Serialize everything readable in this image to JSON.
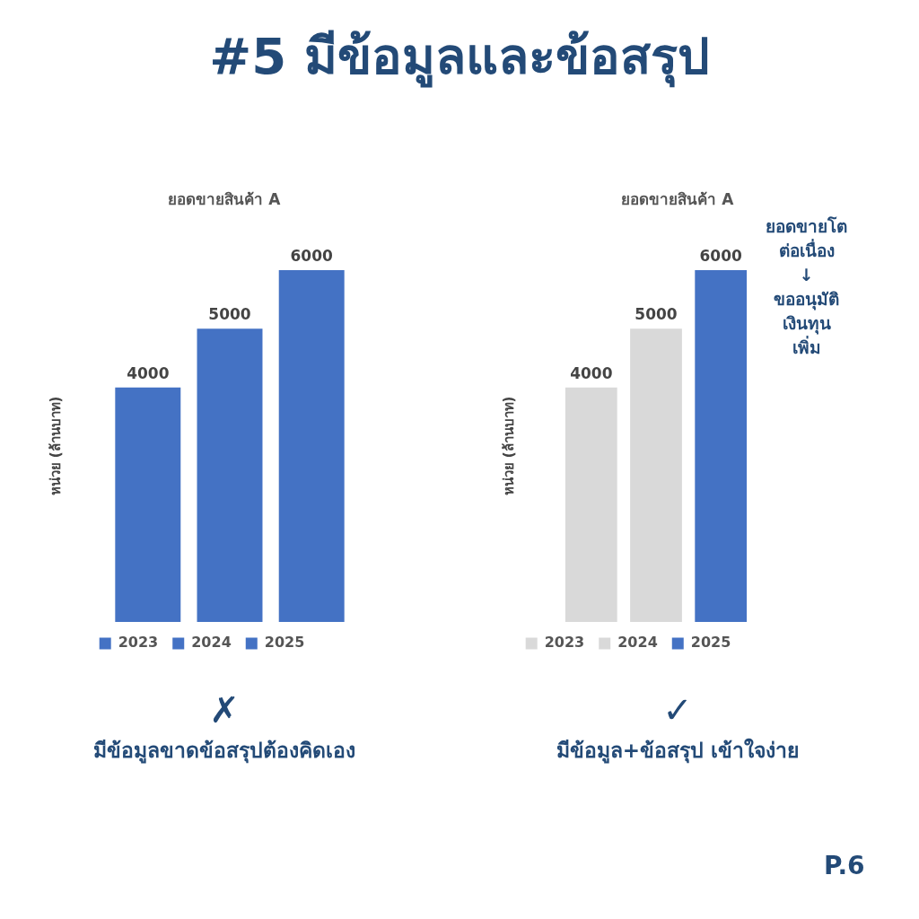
{
  "chart_data": [
    {
      "type": "bar",
      "title": "ยอดขายสินค้า A",
      "ylabel": "หน่วย (ล้านบาท)",
      "categories": [
        null
      ],
      "series": [
        {
          "name": "2023",
          "color": "#4472c4",
          "values": [
            4000
          ]
        },
        {
          "name": "2024",
          "color": "#4472c4",
          "values": [
            5000
          ]
        },
        {
          "name": "2025",
          "color": "#4472c4",
          "values": [
            6000
          ]
        }
      ],
      "data_labels": true,
      "legend": "bottom",
      "tick_labels": false,
      "grid": false,
      "annotations": [
        "#5 มีข้อมูลและข้อสรุป",
        "✗",
        "มีข้อมูลขาดข้อสรุปต้องคิดเอง"
      ]
    },
    {
      "type": "bar",
      "title": "ยอดขายสินค้า A",
      "ylabel": "หน่วย (ล้านบาท)",
      "categories": [
        null
      ],
      "series": [
        {
          "name": "2023",
          "color": "#d9d9d9",
          "values": [
            4000
          ]
        },
        {
          "name": "2024",
          "color": "#d9d9d9",
          "values": [
            5000
          ]
        },
        {
          "name": "2025",
          "color": "#4472c4",
          "values": [
            6000
          ]
        }
      ],
      "data_labels": true,
      "legend": "bottom",
      "tick_labels": false,
      "grid": false,
      "annotations": [
        "ยอดขายโต\nต่อเนื่อง\n↓\nขออนุมัติ\nเงินทุน\nเพิ่ม",
        "✓",
        "มีข้อมูล+ข้อสรุป เข้าใจง่าย",
        "P.6"
      ]
    }
  ]
}
